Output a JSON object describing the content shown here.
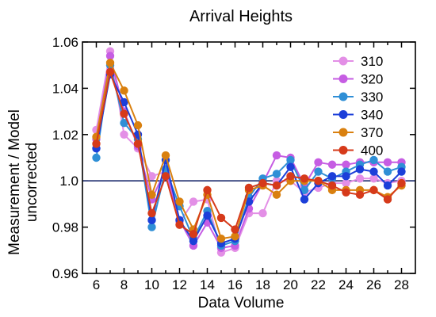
{
  "chart_data": {
    "type": "line",
    "title": "Arrival Heights",
    "xlabel": "Data Volume",
    "ylabel": [
      "Measurement / Model",
      "uncorrected"
    ],
    "xlim": [
      5,
      29
    ],
    "ylim": [
      0.96,
      1.06
    ],
    "xticks": [
      6,
      8,
      10,
      12,
      14,
      16,
      18,
      20,
      22,
      24,
      26,
      28
    ],
    "yticks": [
      0.96,
      0.98,
      1.0,
      1.02,
      1.04,
      1.06
    ],
    "ytick_labels": [
      "0.96",
      "0.98",
      "1.0",
      "1.02",
      "1.04",
      "1.06"
    ],
    "reference_line": 1.0,
    "reference_color": "#1a2a6c",
    "legend_position": "top-right",
    "grid": false,
    "x": [
      6,
      7,
      8,
      9,
      10,
      11,
      12,
      13,
      14,
      15,
      16,
      17,
      18,
      19,
      20,
      21,
      22,
      23,
      24,
      25,
      26,
      27,
      28
    ],
    "series": [
      {
        "name": "310",
        "color": "#e38fe6",
        "values": [
          1.022,
          1.056,
          1.02,
          1.014,
          1.002,
          1.004,
          0.982,
          0.991,
          0.992,
          0.969,
          0.971,
          0.986,
          0.986,
          1.0,
          1.0,
          0.995,
          0.997,
          0.999,
          0.999,
          1.001,
          1.001,
          0.999,
          1.0
        ]
      },
      {
        "name": "320",
        "color": "#c65de3",
        "values": [
          1.018,
          1.054,
          1.03,
          1.015,
          0.992,
          1.005,
          0.983,
          0.972,
          0.982,
          0.971,
          0.972,
          0.988,
          0.999,
          1.011,
          1.01,
          0.998,
          1.008,
          1.007,
          1.007,
          1.008,
          1.008,
          1.008,
          1.008
        ]
      },
      {
        "name": "330",
        "color": "#2f8fd6",
        "values": [
          1.01,
          1.05,
          1.025,
          1.018,
          0.98,
          1.005,
          0.989,
          0.975,
          0.987,
          0.972,
          0.974,
          0.993,
          1.001,
          1.003,
          1.009,
          0.996,
          1.004,
          1.001,
          1.004,
          1.007,
          1.009,
          1.004,
          1.006
        ]
      },
      {
        "name": "340",
        "color": "#1c3fd9",
        "values": [
          1.014,
          1.046,
          1.034,
          1.02,
          0.983,
          1.009,
          0.983,
          0.974,
          0.985,
          0.973,
          0.975,
          0.991,
          0.999,
          0.998,
          1.006,
          0.992,
          0.999,
          1.002,
          1.002,
          1.005,
          1.004,
          0.998,
          1.004
        ]
      },
      {
        "name": "370",
        "color": "#d9800f",
        "values": [
          1.019,
          1.051,
          1.039,
          1.024,
          0.994,
          1.011,
          0.991,
          0.979,
          0.994,
          0.975,
          0.976,
          0.996,
          0.998,
          0.994,
          1.0,
          1.0,
          1.0,
          0.996,
          0.996,
          0.996,
          0.996,
          0.993,
          0.998
        ]
      },
      {
        "name": "400",
        "color": "#d63a1a",
        "values": [
          1.016,
          1.047,
          1.029,
          1.016,
          0.986,
          1.002,
          0.981,
          0.977,
          0.996,
          0.984,
          0.979,
          0.997,
          0.999,
          0.998,
          1.002,
          1.001,
          1.0,
          0.998,
          0.995,
          0.994,
          0.996,
          0.992,
          0.999
        ]
      }
    ]
  }
}
